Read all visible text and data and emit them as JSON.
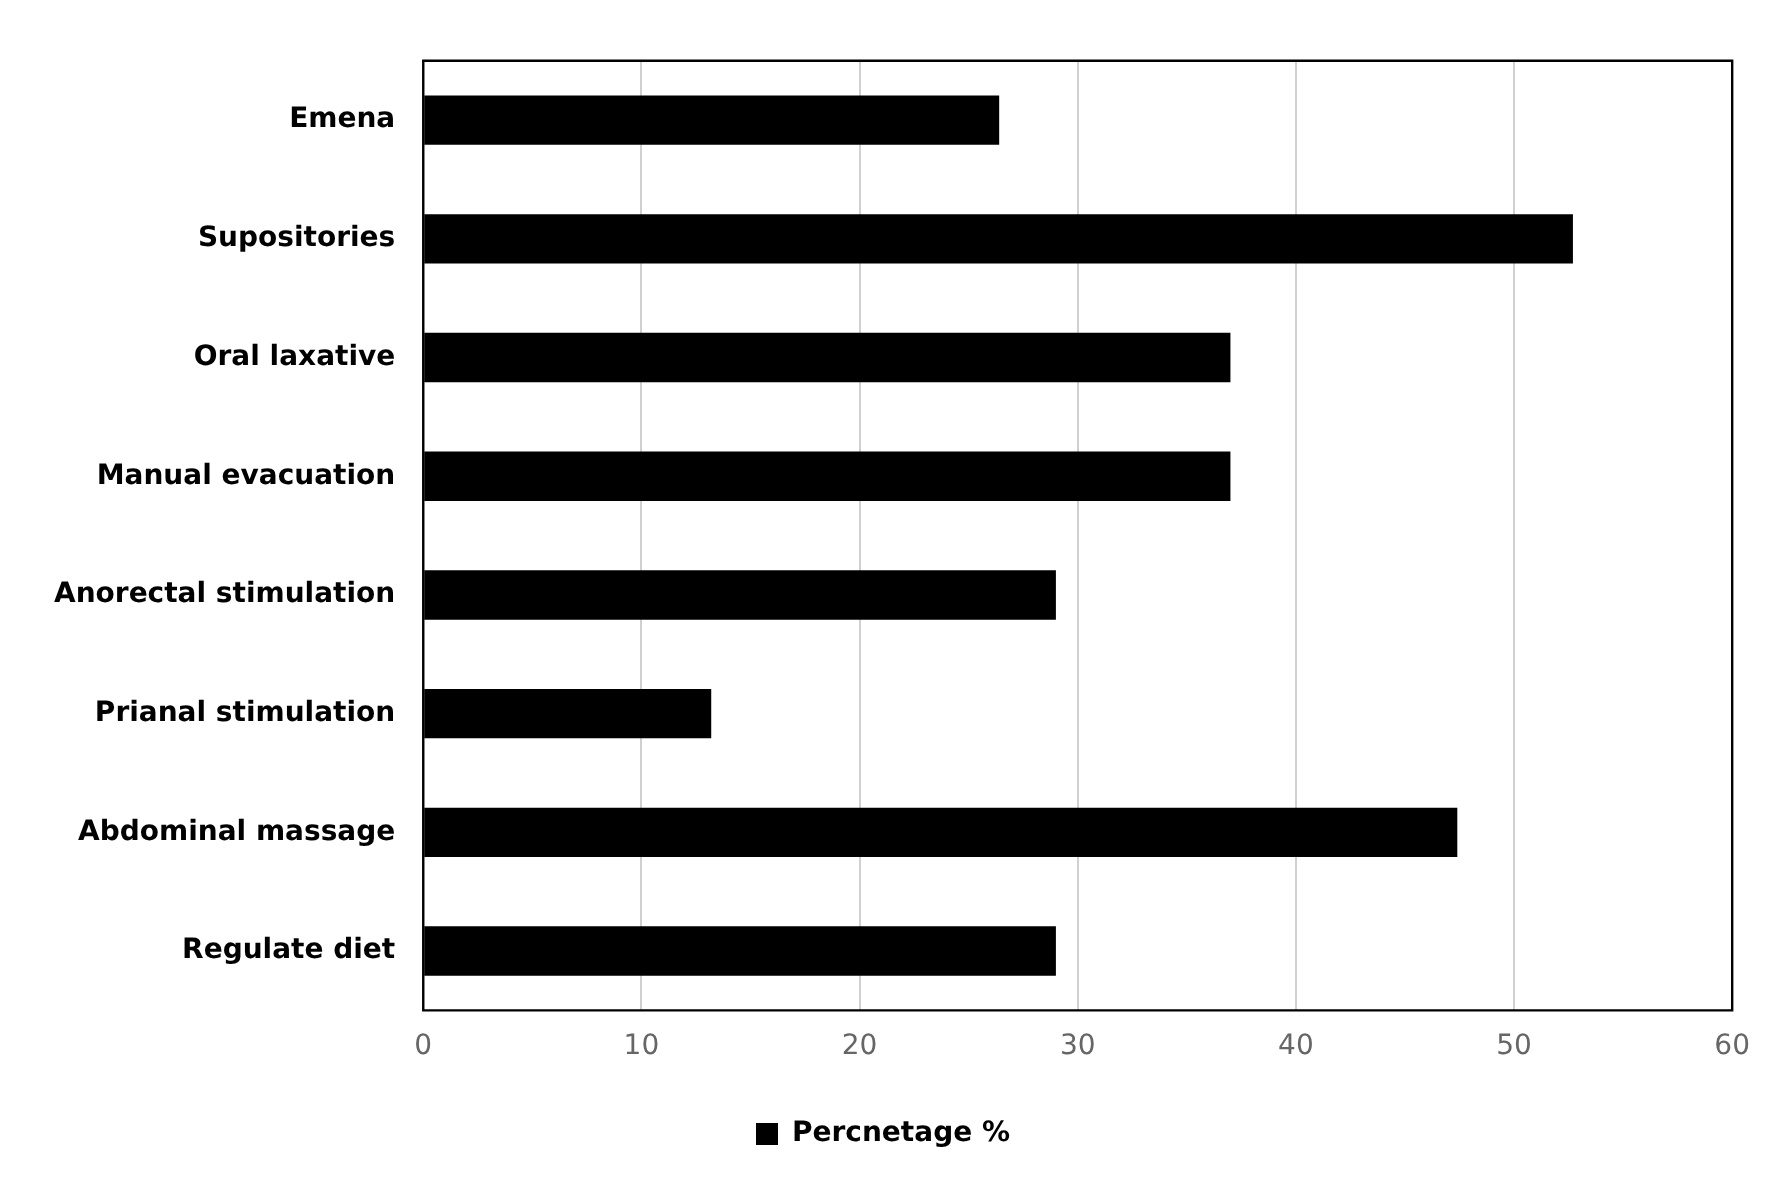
{
  "chart_data": {
    "type": "bar",
    "orientation": "horizontal",
    "categories": [
      "Emena",
      "Supositories",
      "Oral laxative",
      "Manual evacuation",
      "Anorectal stimulation",
      "Prianal stimulation",
      "Abdominal massage",
      "Regulate diet"
    ],
    "series": [
      {
        "name": "Percnetage %",
        "color": "#000000",
        "values": [
          26.4,
          52.7,
          37,
          37,
          29,
          13.2,
          47.4,
          29
        ]
      }
    ],
    "xlim": [
      0,
      60
    ],
    "xticks": [
      0,
      10,
      20,
      30,
      40,
      50,
      60
    ],
    "grid": "x",
    "legend": "bottom"
  }
}
